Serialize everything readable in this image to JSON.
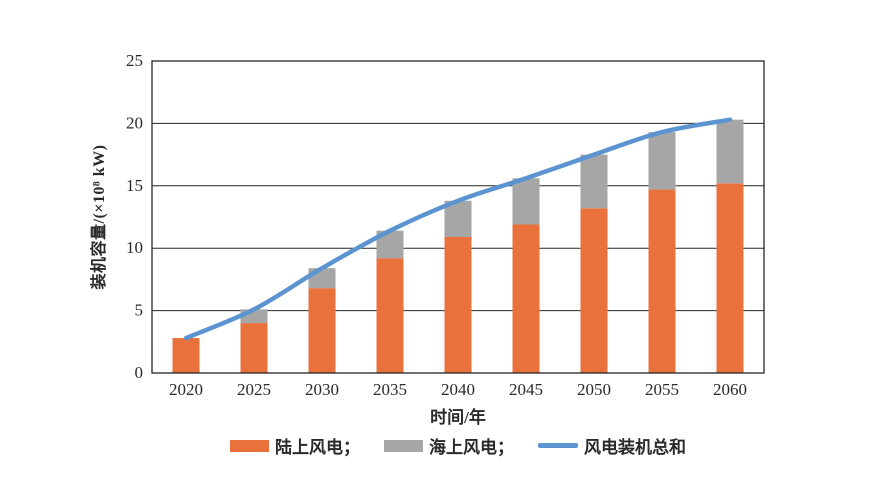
{
  "chart_data": {
    "type": "bar",
    "subtype": "stacked-bars-with-line",
    "title": "",
    "categories": [
      "2020",
      "2025",
      "2030",
      "2035",
      "2040",
      "2045",
      "2050",
      "2055",
      "2060"
    ],
    "series": [
      {
        "name": "陆上风电",
        "type": "bar",
        "color": "#E8713C",
        "values": [
          2.8,
          4.0,
          6.8,
          9.2,
          10.9,
          11.9,
          13.2,
          14.7,
          15.2
        ]
      },
      {
        "name": "海上风电",
        "type": "bar",
        "color": "#A6A6A6",
        "values": [
          0,
          1.1,
          1.6,
          2.2,
          2.9,
          3.7,
          4.3,
          4.6,
          5.1
        ]
      },
      {
        "name": "风电装机总和",
        "type": "line",
        "color": "#5B94D0",
        "values": [
          2.8,
          5.1,
          8.4,
          11.4,
          13.8,
          15.6,
          17.5,
          19.3,
          20.3
        ]
      }
    ],
    "xlabel": "时间/年",
    "ylabel": "装机容量/(×10⁸ kW)",
    "ylim": [
      0,
      25
    ],
    "yticks": [
      0,
      5,
      10,
      15,
      20,
      25
    ],
    "grid": "horizontal",
    "frame": true,
    "legend_position": "bottom",
    "axis_color": "#262626",
    "tick_label_color": "#2a2a2a"
  },
  "legend": {
    "items": [
      {
        "label": "陆上风电；",
        "swatch": "bar",
        "color": "#E8713C"
      },
      {
        "label": "海上风电；",
        "swatch": "bar",
        "color": "#A6A6A6"
      },
      {
        "label": "风电装机总和",
        "swatch": "line",
        "color": "#5B94D0"
      }
    ]
  }
}
